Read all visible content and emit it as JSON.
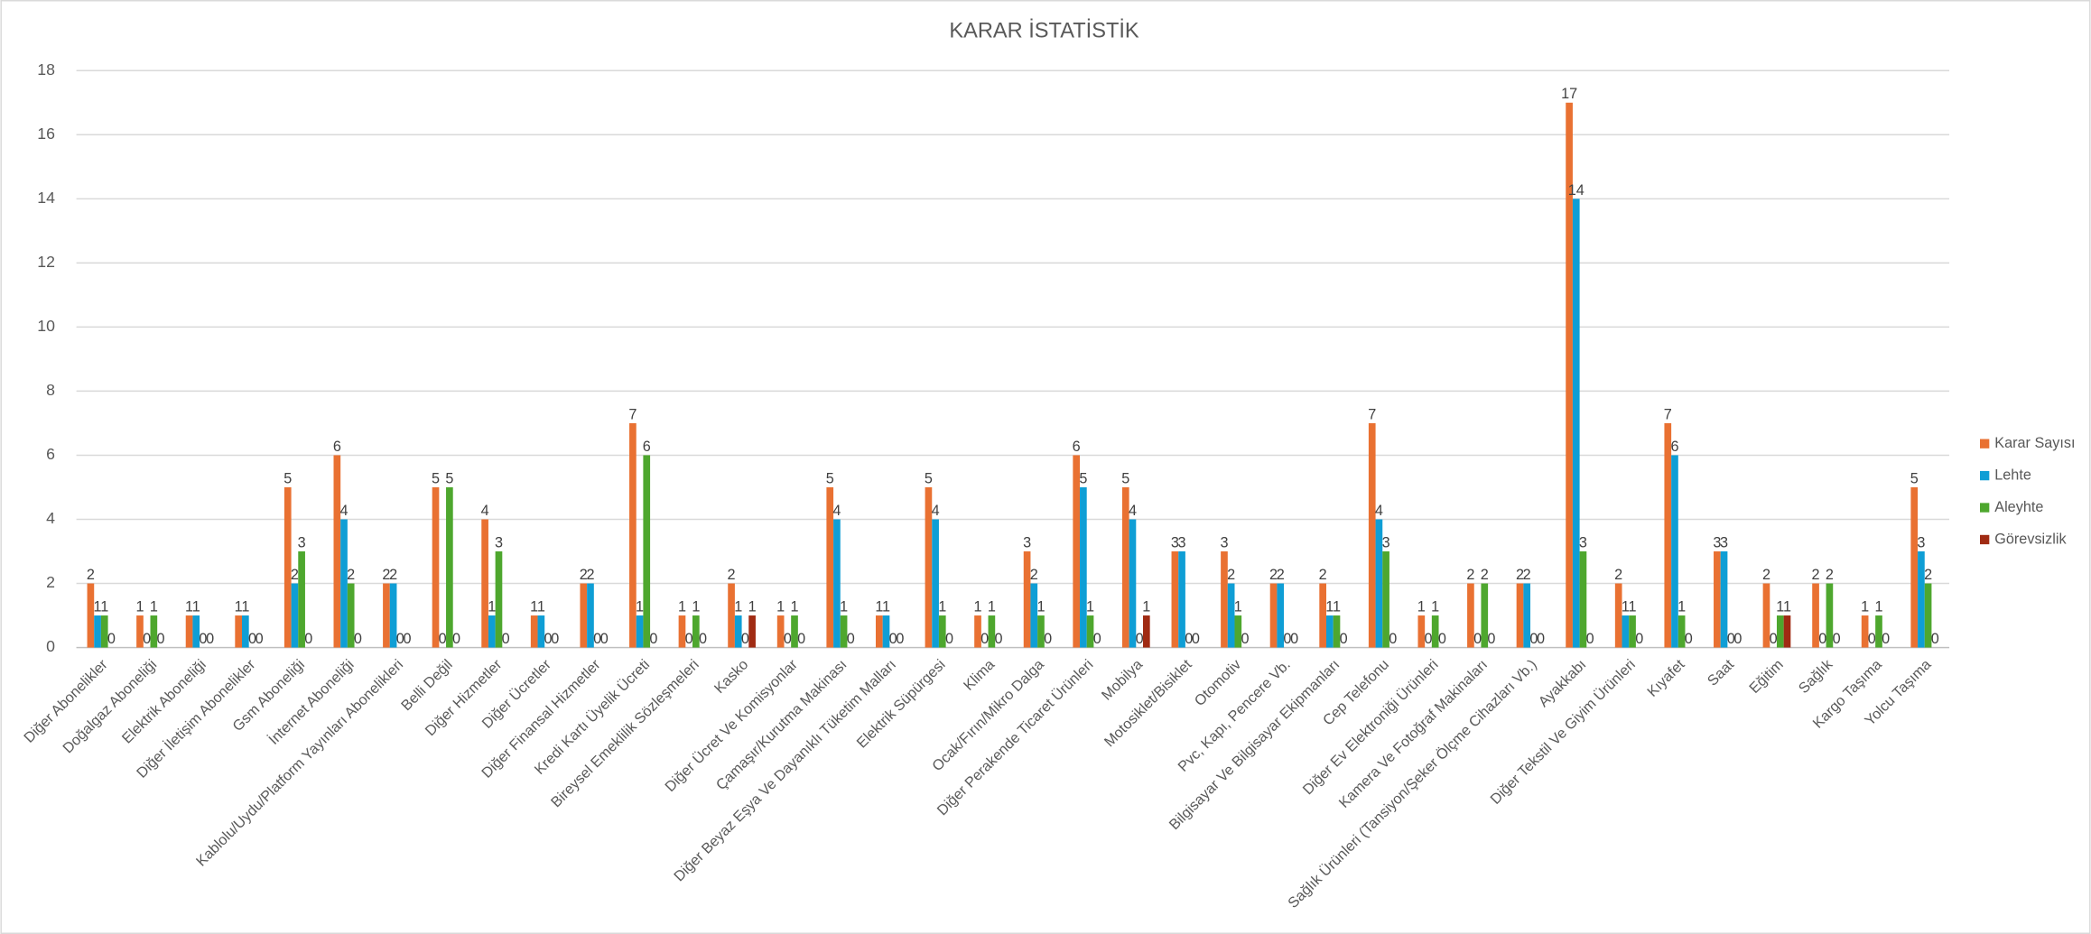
{
  "chart_data": {
    "type": "bar",
    "title": "KARAR İSTATİSTİK",
    "categories": [
      "Diğer Abonelikler",
      "Doğalgaz Aboneliği",
      "Elektrik Aboneliği",
      "Diğer İletişim Abonelikler",
      "Gsm Aboneliği",
      "İnternet Aboneliği",
      "Kablolu/Uydu/Platform Yayınları Abonelikleri",
      "Belli Değil",
      "Diğer Hizmetler",
      "Diğer Ücretler",
      "Diğer Finansal Hizmetler",
      "Kredi Kartı Üyelik Ücreti",
      "Bireysel Emeklilik Sözleşmeleri",
      "Kasko",
      "Diğer Ücret Ve Komisyonlar",
      "Çamaşır/Kurutma Makinası",
      "Diğer Beyaz Eşya Ve Dayanıklı Tüketim Malları",
      "Elektrik Süpürgesi",
      "Klima",
      "Ocak/Fırın/Mikro Dalga",
      "Diğer Perakende Ticaret Ürünleri",
      "Mobilya",
      "Motosiklet/Bisiklet",
      "Otomotiv",
      "Pvc, Kapı, Pencere Vb.",
      "Bilgisayar Ve Bilgisayar Ekipmanları",
      "Cep Telefonu",
      "Diğer Ev Elektroniği Ürünleri",
      "Kamera Ve Fotoğraf Makinaları",
      "Sağlık Ürünleri (Tansiyon/Şeker Ölçme Cihazları Vb.)",
      "Ayakkabı",
      "Diğer Tekstil Ve Giyim Ürünleri",
      "Kıyafet",
      "Saat",
      "Eğitim",
      "Sağlık",
      "Kargo Taşıma",
      "Yolcu Taşıma"
    ],
    "series": [
      {
        "name": "Karar Sayısı",
        "color": "#E97132",
        "values": [
          2,
          1,
          1,
          1,
          5,
          6,
          2,
          5,
          4,
          1,
          2,
          7,
          1,
          2,
          1,
          5,
          1,
          5,
          1,
          3,
          6,
          5,
          3,
          3,
          2,
          2,
          7,
          1,
          2,
          2,
          17,
          2,
          7,
          3,
          2,
          2,
          1,
          5
        ]
      },
      {
        "name": "Lehte",
        "color": "#0F9ED5",
        "values": [
          1,
          0,
          1,
          1,
          2,
          4,
          2,
          0,
          1,
          1,
          2,
          1,
          0,
          1,
          0,
          4,
          1,
          4,
          0,
          2,
          5,
          4,
          3,
          2,
          2,
          1,
          4,
          0,
          0,
          2,
          14,
          1,
          6,
          3,
          0,
          0,
          0,
          3
        ]
      },
      {
        "name": "Aleyhte",
        "color": "#4EA72E",
        "values": [
          1,
          1,
          0,
          0,
          3,
          2,
          0,
          5,
          3,
          0,
          0,
          6,
          1,
          0,
          1,
          1,
          0,
          1,
          1,
          1,
          1,
          0,
          0,
          1,
          0,
          1,
          3,
          1,
          2,
          0,
          3,
          1,
          1,
          0,
          1,
          2,
          1,
          2
        ]
      },
      {
        "name": "Görevsizlik",
        "color": "#A02B13",
        "values": [
          0,
          0,
          0,
          0,
          0,
          0,
          0,
          0,
          0,
          0,
          0,
          0,
          0,
          1,
          0,
          0,
          0,
          0,
          0,
          0,
          0,
          1,
          0,
          0,
          0,
          0,
          0,
          0,
          0,
          0,
          0,
          0,
          0,
          0,
          1,
          0,
          0,
          0
        ]
      }
    ],
    "ylim": [
      0,
      18
    ],
    "yticks": [
      0,
      2,
      4,
      6,
      8,
      10,
      12,
      14,
      16,
      18
    ],
    "grid": true,
    "legend": "right"
  }
}
